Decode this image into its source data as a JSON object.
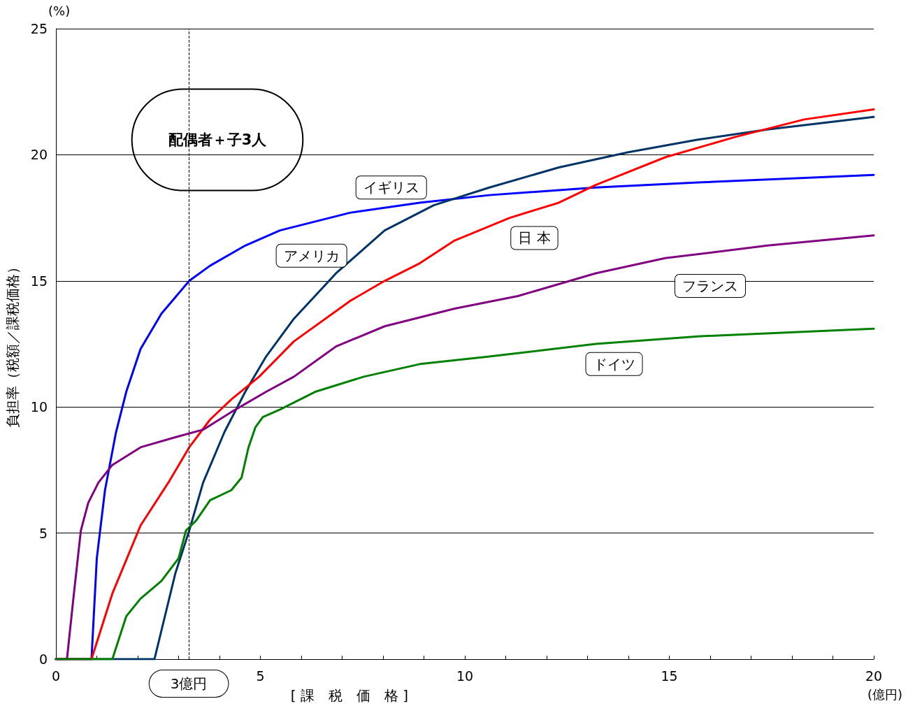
{
  "chart_data": {
    "type": "line",
    "xlabel": "[ 課　税　価　格 ]",
    "ylabel": "負担率（税額／課税価格）",
    "xlim": [
      0,
      20
    ],
    "ylim": [
      0,
      25
    ],
    "xticks": [
      0,
      {
        "value": 1,
        "label": null
      },
      {
        "value": 2,
        "label": null
      },
      {
        "value": 3,
        "label": null
      },
      {
        "value": 4,
        "label": null
      },
      5,
      {
        "value": 6,
        "label": null
      },
      {
        "value": 7,
        "label": null
      },
      {
        "value": 8,
        "label": null
      },
      {
        "value": 9,
        "label": null
      },
      10,
      {
        "value": 11,
        "label": null
      },
      {
        "value": 12,
        "label": null
      },
      {
        "value": 13,
        "label": null
      },
      {
        "value": 14,
        "label": null
      },
      15,
      {
        "value": 16,
        "label": null
      },
      {
        "value": 17,
        "label": null
      },
      {
        "value": 18,
        "label": null
      },
      {
        "value": 19,
        "label": null
      },
      20
    ],
    "yticks": [
      0,
      5,
      10,
      15,
      20,
      25
    ],
    "grid": "y",
    "marker": "none",
    "series": [
      {
        "name": "イギリス",
        "color": "#0000ff",
        "x": [
          0,
          0.87,
          1.0,
          1.2,
          1.47,
          1.72,
          2.07,
          2.58,
          3.26,
          3.77,
          4.63,
          5.48,
          7.19,
          8.9,
          10.6,
          13.2,
          15.7,
          20
        ],
        "values": [
          0,
          0,
          4,
          6.7,
          9,
          10.6,
          12.3,
          13.7,
          15.0,
          15.6,
          16.4,
          17.0,
          17.7,
          18.1,
          18.4,
          18.7,
          18.9,
          19.2
        ]
      },
      {
        "name": "アメリカ",
        "color": "#003366",
        "x": [
          0,
          2.41,
          2.92,
          3.26,
          3.6,
          4.12,
          4.63,
          5.14,
          5.82,
          6.85,
          8.04,
          9.24,
          10.6,
          12.3,
          14.0,
          15.7,
          17.4,
          20
        ],
        "values": [
          0,
          0,
          3.4,
          5.1,
          7.0,
          9.0,
          10.6,
          12.0,
          13.5,
          15.3,
          17.0,
          18.0,
          18.7,
          19.5,
          20.1,
          20.6,
          21.0,
          21.5
        ]
      },
      {
        "name": "日 本",
        "color": "#ff0000",
        "x": [
          0,
          0.87,
          1.38,
          2.07,
          2.75,
          3.26,
          3.77,
          4.29,
          4.97,
          5.82,
          7.19,
          8.04,
          8.9,
          9.75,
          11.1,
          12.3,
          13.2,
          14.9,
          16.6,
          18.3,
          20
        ],
        "values": [
          0,
          0,
          2.6,
          5.3,
          7.0,
          8.4,
          9.5,
          10.3,
          11.2,
          12.6,
          14.2,
          15.0,
          15.7,
          16.6,
          17.5,
          18.1,
          18.8,
          19.9,
          20.7,
          21.4,
          21.8
        ]
      },
      {
        "name": "フランス",
        "color": "#800080",
        "x": [
          0,
          0.27,
          0.44,
          0.61,
          0.79,
          1.04,
          1.38,
          2.07,
          2.92,
          3.6,
          4.29,
          5.14,
          5.82,
          6.85,
          8.04,
          9.75,
          11.3,
          13.2,
          14.9,
          17.4,
          20
        ],
        "values": [
          0,
          0,
          2.6,
          5.1,
          6.2,
          7.0,
          7.7,
          8.4,
          8.8,
          9.1,
          9.8,
          10.6,
          11.2,
          12.4,
          13.2,
          13.9,
          14.4,
          15.3,
          15.9,
          16.4,
          16.8
        ]
      },
      {
        "name": "ドイツ",
        "color": "#008000",
        "x": [
          0,
          1.38,
          1.72,
          2.07,
          2.58,
          3.0,
          3.18,
          3.43,
          3.77,
          4.29,
          4.54,
          4.71,
          4.88,
          5.06,
          5.48,
          6.34,
          7.53,
          8.9,
          10.6,
          13.2,
          15.7,
          20
        ],
        "values": [
          0,
          0,
          1.7,
          2.4,
          3.1,
          4.0,
          5.1,
          5.5,
          6.3,
          6.7,
          7.2,
          8.4,
          9.2,
          9.6,
          9.9,
          10.6,
          11.2,
          11.7,
          12.0,
          12.5,
          12.8,
          13.1
        ]
      }
    ],
    "ref_lines": [
      {
        "axis": "x",
        "value": 3.25,
        "label": "3億円",
        "color": "#000000",
        "line_style": "dashed"
      }
    ],
    "annotations": [
      "配偶者＋子3人",
      "(%)",
      "(億円)"
    ]
  }
}
